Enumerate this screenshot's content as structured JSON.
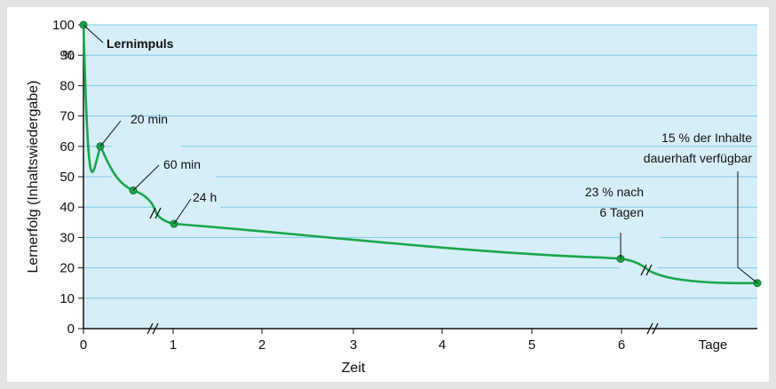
{
  "colors": {
    "frame": "#e3e3e3",
    "plot_background": "#d6eef8",
    "grid": "#7fc8e8",
    "curve": "#1aa64b",
    "marker": "#1aa64b"
  },
  "chart_data": {
    "type": "line",
    "title": "",
    "xlabel": "Zeit",
    "ylabel": "Lernerfolg (Inhaltswiedergabe)",
    "y_unit": "%",
    "ylim": [
      0,
      100
    ],
    "y_ticks": [
      "0",
      "10",
      "20",
      "30",
      "40",
      "50",
      "60",
      "70",
      "80",
      "90",
      "100"
    ],
    "x_ticks": [
      "0",
      "1",
      "2",
      "3",
      "4",
      "5",
      "6"
    ],
    "x_end_label": "Tage",
    "grid": true,
    "axis_breaks": "x-axis and curve broken between 60 min and 24 h, and between 6 Tagen and the end",
    "series": [
      {
        "points": [
          {
            "x": "0",
            "y": 100
          },
          {
            "x": "20 min",
            "y": 60
          },
          {
            "x": "60 min",
            "y": 45.5
          },
          {
            "x": "24 h",
            "y": 34.5
          },
          {
            "x": "6 Tage",
            "y": 23
          },
          {
            "x": "end",
            "y": 15
          }
        ]
      }
    ],
    "annotations": [
      {
        "text": "Lernimpuls",
        "bold": true
      },
      {
        "text": "20 min"
      },
      {
        "text": "60 min"
      },
      {
        "text": "24 h"
      },
      {
        "text": "23 % nach"
      },
      {
        "text": "6 Tagen"
      },
      {
        "text": "15 % der Inhalte"
      },
      {
        "text": "dauerhaft verfügbar"
      }
    ]
  }
}
